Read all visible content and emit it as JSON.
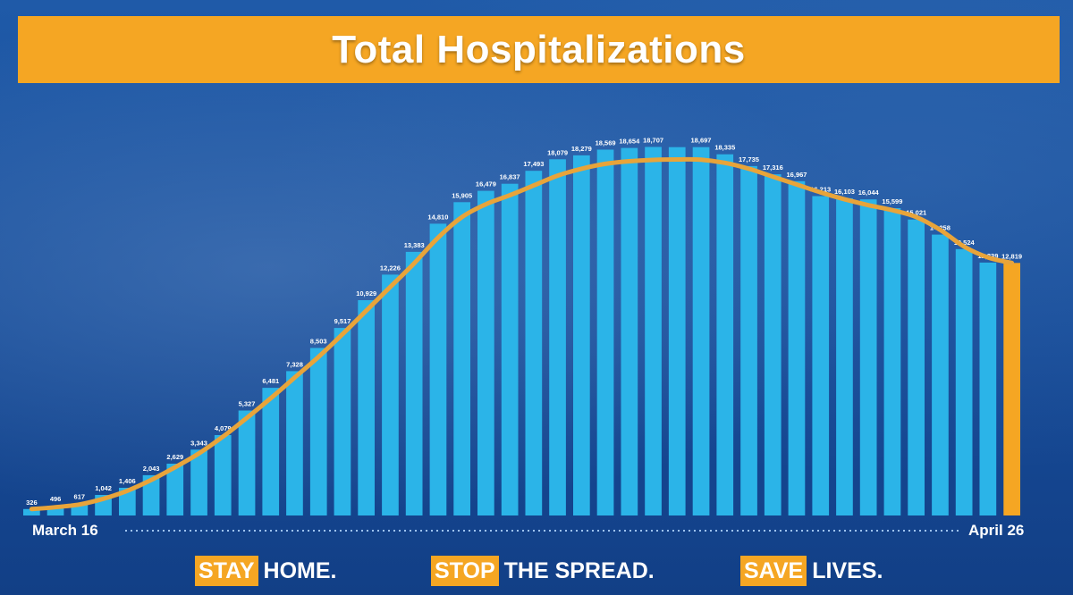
{
  "header": {
    "title": "Total Hospitalizations"
  },
  "axis": {
    "start_label": "March 16",
    "end_label": "April 26"
  },
  "footer": {
    "slogans": [
      {
        "highlight": "STAY",
        "rest": "HOME."
      },
      {
        "highlight": "STOP",
        "rest": "THE SPREAD."
      },
      {
        "highlight": "SAVE",
        "rest": "LIVES."
      }
    ]
  },
  "colors": {
    "background": "#1a4f9c",
    "banner": "#f5a623",
    "bar": "#2bb4e8",
    "trend_line": "#e8a43a",
    "last_bar": "#f5a623"
  },
  "chart_data": {
    "type": "bar",
    "title": "Total Hospitalizations",
    "x_start": "March 16",
    "x_end": "April 26",
    "values": [
      326,
      496,
      617,
      1042,
      1406,
      2043,
      2629,
      3343,
      4079,
      5327,
      6481,
      7328,
      8503,
      9517,
      10929,
      12226,
      13383,
      14810,
      15905,
      16479,
      16837,
      17493,
      18079,
      18279,
      18569,
      18654,
      18707,
      18697,
      18697,
      18335,
      17735,
      17316,
      16967,
      16213,
      16103,
      16044,
      15599,
      15021,
      14258,
      13524,
      12839,
      12819
    ],
    "labels": [
      "326",
      "496",
      "617",
      "1,042",
      "1,406",
      "2,043",
      "2,629",
      "3,343",
      "4,079",
      "5,327",
      "6,481",
      "7,328",
      "8,503",
      "9,517",
      "10,929",
      "12,226",
      "13,383",
      "14,810",
      "15,905",
      "16,479",
      "16,837",
      "17,493",
      "18,079",
      "18,279",
      "18,569",
      "18,654",
      "18,707",
      "",
      "18,697",
      "18,335",
      "17,735",
      "17,316",
      "16,967",
      "16,213",
      "16,103",
      "16,044",
      "15,599",
      "15,021",
      "14,258",
      "13,524",
      "12,839",
      "12,819"
    ],
    "trend": [
      326,
      420,
      560,
      850,
      1250,
      1800,
      2450,
      3150,
      4000,
      4950,
      5950,
      7000,
      8050,
      9200,
      10400,
      11600,
      12800,
      14100,
      15150,
      15800,
      16250,
      16750,
      17250,
      17600,
      17850,
      17980,
      18050,
      18070,
      18060,
      17900,
      17600,
      17200,
      16800,
      16400,
      16050,
      15750,
      15500,
      15150,
      14500,
      13650,
      13100,
      12819
    ],
    "ylim": [
      0,
      19000
    ],
    "grid": false,
    "legend": "none"
  }
}
